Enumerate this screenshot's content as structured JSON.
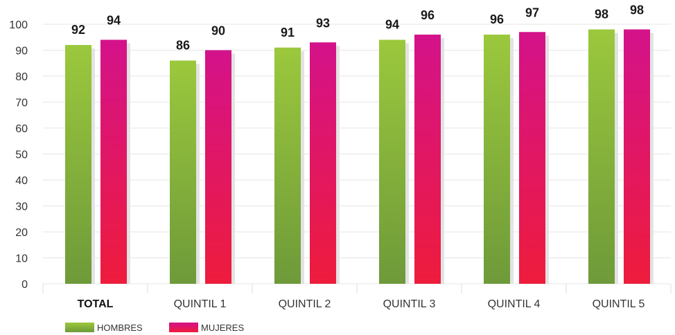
{
  "chart_data": {
    "type": "bar",
    "categories": [
      "TOTAL",
      "QUINTIL 1",
      "QUINTIL 2",
      "QUINTIL 3",
      "QUINTIL 4",
      "QUINTIL 5"
    ],
    "series": [
      {
        "name": "HOMBRES",
        "values": [
          92,
          86,
          91,
          94,
          96,
          98
        ],
        "color_top": "#9bc83c",
        "color_bottom": "#6e9a3a"
      },
      {
        "name": "MUJERES",
        "values": [
          94,
          90,
          93,
          96,
          97,
          98
        ],
        "color_top": "#d4128a",
        "color_bottom": "#ee1c3c"
      }
    ],
    "ylim": [
      0,
      100
    ],
    "yticks": [
      0,
      10,
      20,
      30,
      40,
      50,
      60,
      70,
      80,
      90,
      100
    ],
    "grid": true,
    "legend": "bottom-left",
    "bold_categories": [
      "TOTAL"
    ],
    "shadow_color": "#e3e3e3"
  }
}
